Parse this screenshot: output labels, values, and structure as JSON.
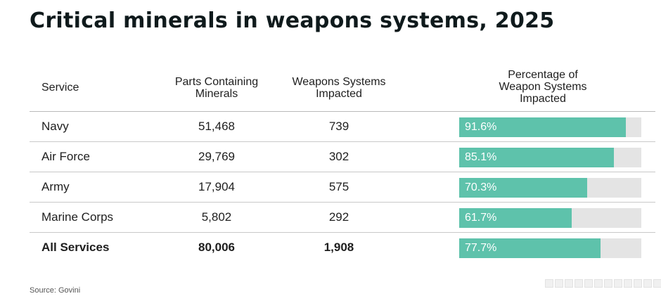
{
  "title": "Critical minerals in weapons systems, 2025",
  "headers": {
    "service": "Service",
    "parts_l1": "Parts Containing",
    "parts_l2": "Minerals",
    "systems_l1": "Weapons Systems",
    "systems_l2": "Impacted",
    "pct_l1": "Percentage of",
    "pct_l2": "Weapon Systems",
    "pct_l3": "Impacted"
  },
  "rows": [
    {
      "service": "Navy",
      "parts": "51,468",
      "systems": "739",
      "pct_label": "91.6%"
    },
    {
      "service": "Air Force",
      "parts": "29,769",
      "systems": "302",
      "pct_label": "85.1%"
    },
    {
      "service": "Army",
      "parts": "17,904",
      "systems": "575",
      "pct_label": "70.3%"
    },
    {
      "service": "Marine Corps",
      "parts": "5,802",
      "systems": "292",
      "pct_label": "61.7%"
    },
    {
      "service": "All Services",
      "parts": "80,006",
      "systems": "1,908",
      "pct_label": "77.7%"
    }
  ],
  "source": "Source: Govini",
  "colors": {
    "bar": "#5ec2ab",
    "track": "#e4e4e4"
  },
  "chart_data": {
    "type": "table",
    "title": "Critical minerals in weapons systems, 2025",
    "columns": [
      "Service",
      "Parts Containing Minerals",
      "Weapons Systems Impacted",
      "Percentage of Weapon Systems Impacted"
    ],
    "categories": [
      "Navy",
      "Air Force",
      "Army",
      "Marine Corps",
      "All Services"
    ],
    "parts_containing_minerals": [
      51468,
      29769,
      17904,
      5802,
      80006
    ],
    "weapons_systems_impacted": [
      739,
      302,
      575,
      292,
      1908
    ],
    "percentage_impacted": [
      91.6,
      85.1,
      70.3,
      61.7,
      77.7
    ],
    "bar_range": [
      0,
      100
    ]
  }
}
